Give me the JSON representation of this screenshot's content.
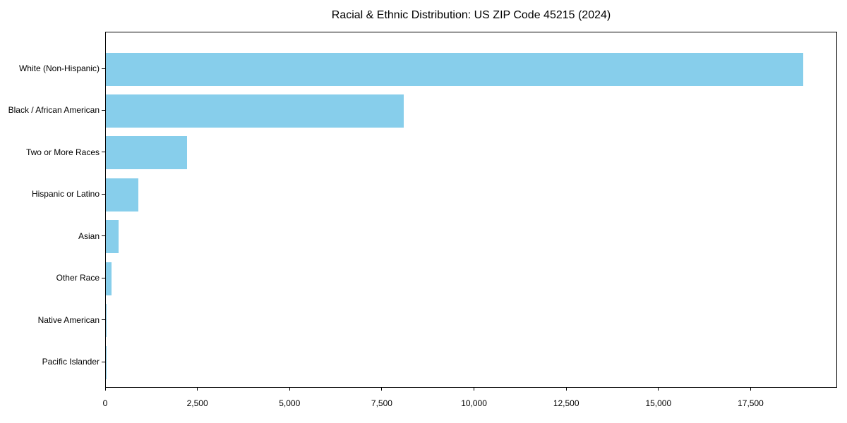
{
  "chart_data": {
    "type": "bar",
    "orientation": "horizontal",
    "title": "Racial & Ethnic Distribution: US ZIP Code 45215 (2024)",
    "categories": [
      "White (Non-Hispanic)",
      "Black / African American",
      "Two or More Races",
      "Hispanic or Latino",
      "Asian",
      "Other Race",
      "Native American",
      "Pacific Islander"
    ],
    "values": [
      18900,
      8080,
      2200,
      875,
      350,
      160,
      25,
      5
    ],
    "xlabel": "",
    "ylabel": "",
    "xlim": [
      0,
      19845
    ],
    "x_ticks": [
      0,
      2500,
      5000,
      7500,
      10000,
      12500,
      15000,
      17500
    ],
    "x_tick_labels": [
      "0",
      "2,500",
      "5,000",
      "7,500",
      "10,000",
      "12,500",
      "15,000",
      "17,500"
    ],
    "bar_color": "#87CEEB",
    "text_color": "#000000",
    "spine_color": "#000000",
    "background_color": "#ffffff",
    "grid": false,
    "legend": "none",
    "category_order": "largest-at-top"
  }
}
